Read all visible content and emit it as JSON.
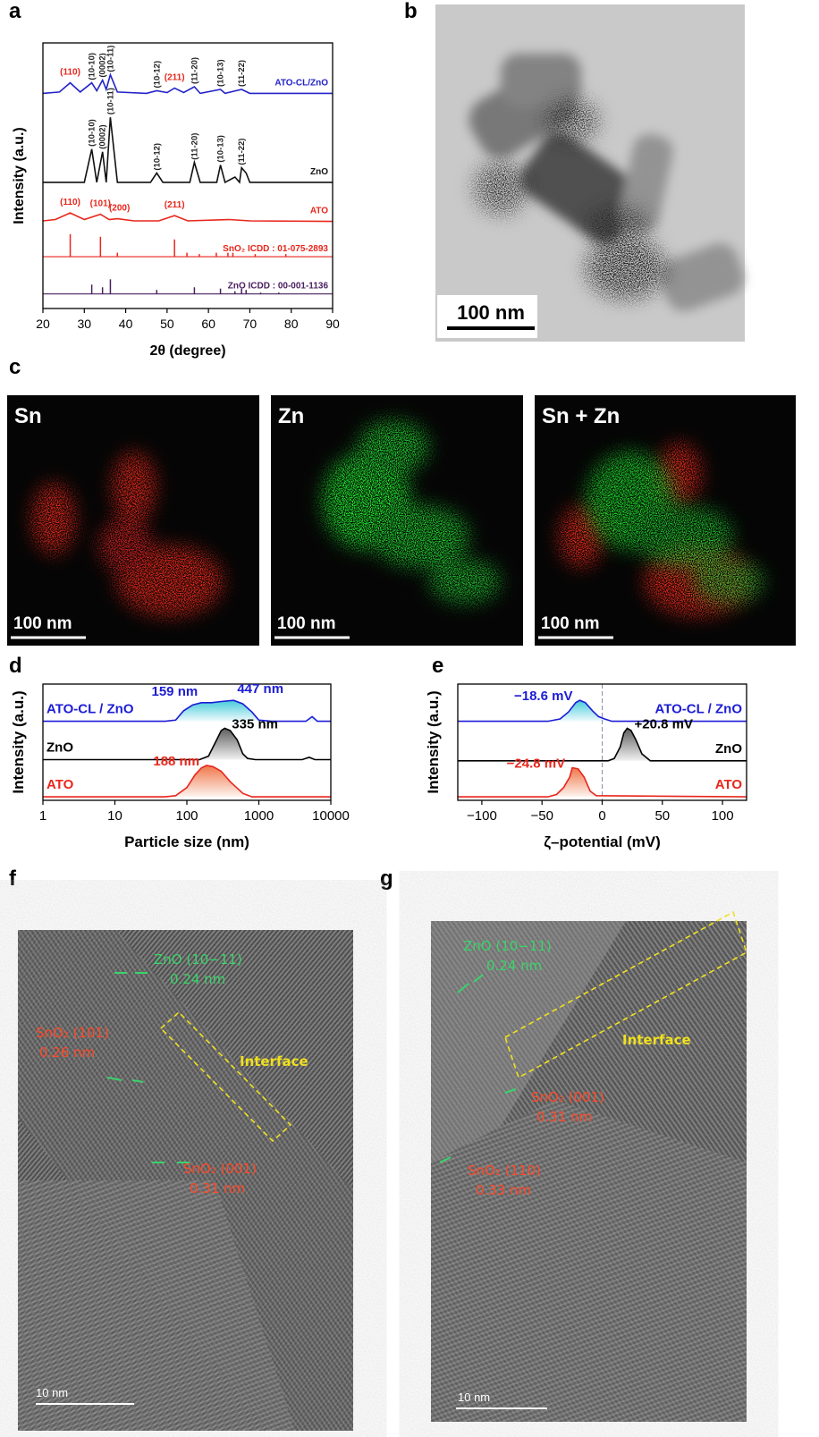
{
  "panel_labels": [
    "a",
    "b",
    "c",
    "d",
    "e",
    "f",
    "g"
  ],
  "chart_data": [
    {
      "type": "line",
      "x_label": "2θ (degree)",
      "y_label": "Intensity (a.u.)",
      "xlim": [
        20,
        90
      ],
      "xticks": [
        20,
        30,
        40,
        50,
        60,
        70,
        80,
        90
      ],
      "ylim": [
        0,
        100
      ],
      "legend": "right",
      "label_color": "#222",
      "series": [
        {
          "name": "ATO-CL/ZnO",
          "color": "#2323c8",
          "x": [
            20,
            24,
            26.6,
            29,
            31.8,
            33,
            34.4,
            35.3,
            36.3,
            38,
            45,
            47.5,
            50,
            51.8,
            54,
            56.6,
            58,
            62.9,
            64,
            68,
            70,
            90
          ],
          "values": [
            81,
            81.5,
            85,
            81.5,
            85,
            82,
            86,
            82.5,
            88,
            81.5,
            81,
            82,
            81.3,
            83,
            81.3,
            83.5,
            81,
            82.5,
            81,
            82.5,
            81,
            81
          ]
        },
        {
          "name": "ZnO",
          "color": "#111111",
          "x": [
            20,
            30,
            31.8,
            33,
            34.4,
            35.3,
            36.3,
            38,
            46,
            47.5,
            49,
            55.5,
            56.6,
            58,
            62,
            62.9,
            64,
            66.4,
            67.5,
            68,
            69.1,
            70,
            90
          ],
          "values": [
            47.5,
            47.5,
            60,
            47.5,
            59,
            47.5,
            72,
            47.5,
            47.5,
            51,
            47.5,
            47.5,
            55,
            47.5,
            47.5,
            54,
            47.5,
            49.5,
            47.5,
            53,
            51,
            47.5,
            47.5
          ]
        },
        {
          "name": "ATO",
          "color": "#e8261c",
          "x": [
            20,
            23,
            26.6,
            30,
            33.9,
            36,
            38,
            42,
            48,
            51.8,
            55,
            65,
            70,
            90
          ],
          "values": [
            33,
            33.5,
            36,
            33.5,
            35.5,
            33.5,
            33.8,
            33,
            33,
            35,
            33,
            33.5,
            33,
            32.8
          ]
        },
        {
          "name": "SnO₂ ICDD : 01-075-2893",
          "color": "#e8261c",
          "style": "stick",
          "base": 19.5,
          "x": [
            26.6,
            33.9,
            38,
            51.8,
            54.8,
            57.8,
            61.9,
            64.7,
            65.9,
            71.3,
            78.7
          ],
          "values": [
            28,
            27,
            21,
            26,
            21,
            20.5,
            21,
            21,
            21,
            20.5,
            20.5
          ]
        },
        {
          "name": "ZnO ICDD : 00-001-1136",
          "color": "#4a2060",
          "style": "stick",
          "base": 5.5,
          "x": [
            31.8,
            34.4,
            36.3,
            47.5,
            56.6,
            62.9,
            66.4,
            68,
            69.1,
            72.6,
            77
          ],
          "values": [
            9,
            8,
            11,
            7,
            8,
            7.5,
            6.5,
            7.5,
            7,
            6,
            6
          ]
        }
      ],
      "peak_labels": [
        {
          "x": 26.6,
          "y": 86,
          "label": "(110)",
          "color": "#e8261c",
          "side": "above"
        },
        {
          "x": 31.8,
          "y": 86,
          "label": "(10-10)",
          "vertical": true
        },
        {
          "x": 34.4,
          "y": 87,
          "label": "(0002)",
          "vertical": true
        },
        {
          "x": 36.3,
          "y": 89,
          "label": "(10-11)",
          "vertical": true
        },
        {
          "x": 47.5,
          "y": 83,
          "label": "(10-12)",
          "vertical": true
        },
        {
          "x": 51.8,
          "y": 84,
          "label": "(211)",
          "color": "#e8261c",
          "side": "above"
        },
        {
          "x": 56.6,
          "y": 84.5,
          "label": "(11-20)",
          "vertical": true
        },
        {
          "x": 62.9,
          "y": 83.5,
          "label": "(10-13)",
          "vertical": true
        },
        {
          "x": 68,
          "y": 83.5,
          "label": "(11-22)",
          "vertical": true
        },
        {
          "x": 31.8,
          "y": 61,
          "label": "(10-10)",
          "vertical": true
        },
        {
          "x": 34.4,
          "y": 60,
          "label": "(0002)",
          "vertical": true
        },
        {
          "x": 36.3,
          "y": 73,
          "label": "(10-11)",
          "vertical": true
        },
        {
          "x": 47.5,
          "y": 52,
          "label": "(10-12)",
          "vertical": true
        },
        {
          "x": 56.6,
          "y": 56,
          "label": "(11-20)",
          "vertical": true
        },
        {
          "x": 62.9,
          "y": 55,
          "label": "(10-13)",
          "vertical": true
        },
        {
          "x": 68,
          "y": 54,
          "label": "(11-22)",
          "vertical": true
        },
        {
          "x": 26.6,
          "y": 37,
          "label": "(110)",
          "color": "#e8261c",
          "side": "above"
        },
        {
          "x": 33.9,
          "y": 36.5,
          "label": "(101)",
          "color": "#e8261c",
          "side": "above"
        },
        {
          "x": 38.5,
          "y": 34.8,
          "label": "(200)",
          "color": "#e8261c",
          "side": "above"
        },
        {
          "x": 51.8,
          "y": 36,
          "label": "(211)",
          "color": "#e8261c",
          "side": "above"
        }
      ]
    },
    {
      "type": "line",
      "x_label": "Particle size (nm)",
      "y_label": "Intensity (a.u.)",
      "xscale": "log",
      "xlim": [
        1,
        10000
      ],
      "xticks": [
        1,
        10,
        100,
        1000,
        10000
      ],
      "ylim": [
        0,
        100
      ],
      "legend": "left",
      "fill": true,
      "series": [
        {
          "name": "ATO-CL / ZnO",
          "color": "#1c1cd6",
          "fill_color": "#3cc8d8",
          "x": [
            1,
            50,
            70,
            90,
            120,
            159,
            220,
            300,
            447,
            600,
            800,
            1000,
            1500,
            4500,
            5500,
            6500,
            10000
          ],
          "values": [
            68,
            68,
            69,
            77,
            82,
            84,
            84,
            85,
            86,
            83,
            76,
            69,
            68,
            68,
            72,
            68,
            68
          ]
        },
        {
          "name": "ZnO",
          "color": "#000000",
          "fill_color": "#555555",
          "x": [
            1,
            100,
            150,
            200,
            250,
            300,
            335,
            400,
            500,
            600,
            700,
            900,
            4000,
            5000,
            6000,
            10000
          ],
          "values": [
            35,
            35,
            35,
            38,
            50,
            60,
            62,
            60,
            52,
            40,
            36,
            35,
            35,
            37,
            35,
            35
          ]
        },
        {
          "name": "ATO",
          "color": "#e8261c",
          "fill_color": "#ee7040",
          "x": [
            1,
            50,
            70,
            100,
            130,
            160,
            188,
            230,
            300,
            400,
            600,
            800,
            10000
          ],
          "values": [
            3,
            3,
            4,
            11,
            22,
            28,
            30,
            29,
            25,
            16,
            6,
            3,
            3
          ]
        }
      ],
      "peak_labels": [
        {
          "x": 159,
          "y": 84,
          "label": "159 nm",
          "color": "#1c1cd6",
          "side": "above-left"
        },
        {
          "x": 447,
          "y": 86,
          "label": "447 nm",
          "color": "#1c1cd6",
          "side": "above-right"
        },
        {
          "x": 335,
          "y": 62,
          "label": "335 nm",
          "color": "#000000",
          "side": "right"
        },
        {
          "x": 188,
          "y": 30,
          "label": "188 nm",
          "color": "#e8261c",
          "side": "left"
        }
      ]
    },
    {
      "type": "line",
      "x_label": "ζ–potential (mV)",
      "y_label": "Intensity (a.u.)",
      "xlim": [
        -120,
        120
      ],
      "xticks": [
        {
          "value": -100,
          "label": "−100"
        },
        {
          "value": -50,
          "label": "−50"
        },
        0,
        50,
        100
      ],
      "ylim": [
        0,
        100
      ],
      "legend": "right",
      "fill": true,
      "zero_line": true,
      "series": [
        {
          "name": "ATO-CL / ZnO",
          "color": "#1c1cd6",
          "fill_color": "#3cc8d8",
          "x": [
            -120,
            -45,
            -35,
            -28,
            -22,
            -18.6,
            -14,
            -8,
            -3,
            2,
            8,
            120
          ],
          "values": [
            68,
            68,
            70,
            76,
            84,
            86,
            84,
            77,
            72,
            70,
            68,
            68
          ]
        },
        {
          "name": "ZnO",
          "color": "#000000",
          "fill_color": "#555555",
          "x": [
            -120,
            5,
            10,
            15,
            18,
            20.8,
            24,
            28,
            33,
            40,
            120
          ],
          "values": [
            34,
            34,
            36,
            46,
            58,
            62,
            60,
            52,
            40,
            34,
            34
          ]
        },
        {
          "name": "ATO",
          "color": "#e8261c",
          "fill_color": "#ee7040",
          "x": [
            -120,
            -45,
            -38,
            -32,
            -27,
            -24.8,
            -20,
            -15,
            -10,
            -5,
            120
          ],
          "values": [
            3,
            3,
            5,
            11,
            20,
            28,
            27,
            20,
            8,
            4,
            3
          ]
        }
      ],
      "peak_labels": [
        {
          "x": -18.6,
          "y": 86,
          "label": "−18.6 mV",
          "color": "#1c1cd6",
          "side": "left"
        },
        {
          "x": 20.8,
          "y": 62,
          "label": "+20.8 mV",
          "color": "#000000",
          "side": "right"
        },
        {
          "x": -24.8,
          "y": 28,
          "label": "−24.8 mV",
          "color": "#e8261c",
          "side": "left"
        }
      ]
    }
  ],
  "tem_image": {
    "scale_bar": "100 nm"
  },
  "eds_maps": [
    {
      "title": "Sn",
      "scale_bar": "100 nm"
    },
    {
      "title": "Zn",
      "scale_bar": "100 nm"
    },
    {
      "title": "Sn + Zn",
      "scale_bar": "100 nm"
    }
  ],
  "hrtem_images": [
    {
      "annotations": [
        {
          "title": "ZnO (10−11)",
          "spacing": "0.24 nm"
        },
        {
          "title": "SnO₂ (101)",
          "spacing": "0.26 nm"
        },
        {
          "title": "SnO₂ (001)",
          "spacing": "0.31 nm"
        }
      ],
      "region": "Interface",
      "scale_bar": "10 nm"
    },
    {
      "annotations": [
        {
          "title": "ZnO (10−11)",
          "spacing": "0.24 nm"
        },
        {
          "title": "SnO₂ (001)",
          "spacing": "0.31 nm"
        },
        {
          "title": "SnO₂ (110)",
          "spacing": "0.33 nm"
        }
      ],
      "region": "Interface",
      "scale_bar": "10 nm"
    }
  ]
}
